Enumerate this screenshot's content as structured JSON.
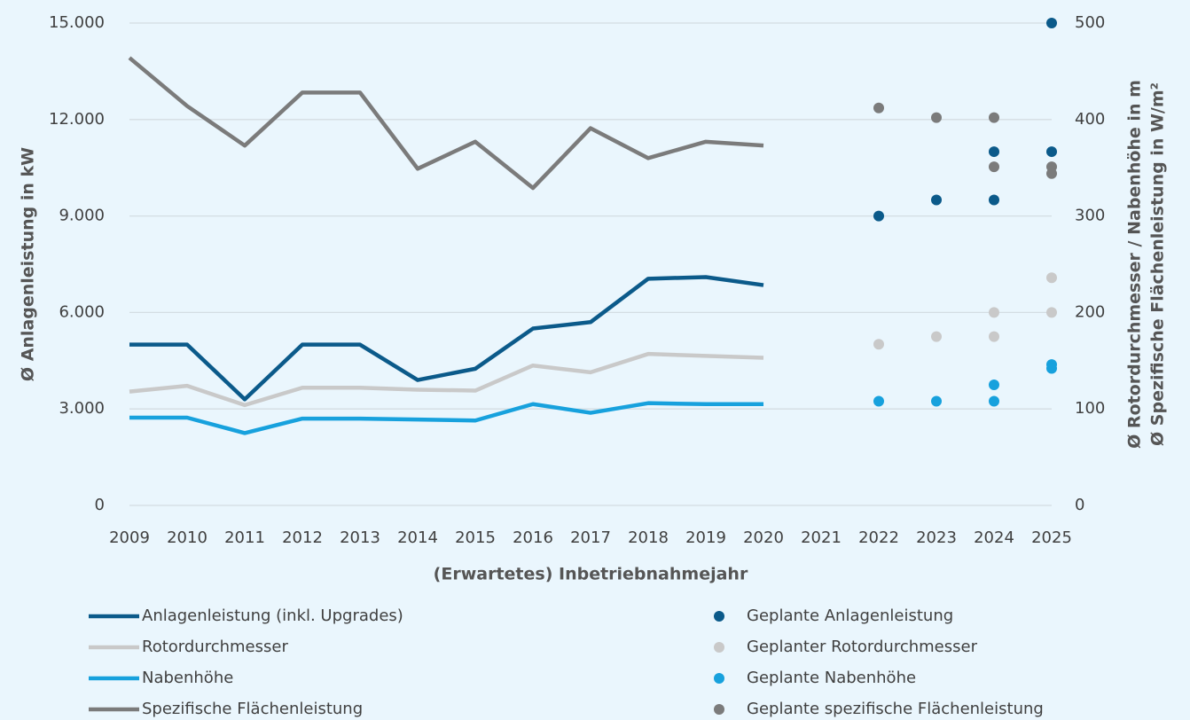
{
  "chart_data": {
    "type": "line",
    "x_label": "(Erwartetes) Inbetriebnahmejahr",
    "y_label": "Ø Anlagenleistung in kW",
    "y2_label": [
      "Ø Rotordurchmesser / Nabenhöhe in m",
      "Ø Spezifische Flächenleistung in W/m²"
    ],
    "categories": [
      "2009",
      "2010",
      "2011",
      "2012",
      "2013",
      "2014",
      "2015",
      "2016",
      "2017",
      "2018",
      "2019",
      "2020",
      "2021",
      "2022",
      "2023",
      "2024",
      "2025"
    ],
    "ylim": [
      0,
      15000
    ],
    "yticks": [
      0,
      {
        "value": 3000,
        "label": "3.000"
      },
      {
        "value": 6000,
        "label": "6.000"
      },
      {
        "value": 9000,
        "label": "9.000"
      },
      {
        "value": 12000,
        "label": "12.000"
      },
      {
        "value": 15000,
        "label": "15.000"
      }
    ],
    "y2lim": [
      0,
      500
    ],
    "y2ticks": [
      0,
      100,
      200,
      300,
      400,
      500
    ],
    "grid": true,
    "legend": "bottom",
    "series": [
      {
        "name": "Anlagenleistung (inkl. Upgrades)",
        "type": "line",
        "color": "#0b5a8a",
        "values": [
          5000,
          5000,
          3300,
          5000,
          5000,
          3900,
          4250,
          5500,
          5700,
          7050,
          7100,
          6850,
          null,
          null,
          null,
          null,
          null
        ]
      },
      {
        "name": "Rotordurchmesser",
        "type": "line",
        "axis": "y2",
        "color": "#c9c9c9",
        "values": [
          118,
          124,
          104,
          122,
          122,
          120,
          119,
          145,
          138,
          157,
          155,
          153,
          null,
          null,
          null,
          null,
          null
        ]
      },
      {
        "name": "Nabenhöhe",
        "type": "line",
        "axis": "y2",
        "color": "#17a1dd",
        "values": [
          91,
          91,
          75,
          90,
          90,
          89,
          88,
          105,
          96,
          106,
          105,
          105,
          null,
          null,
          null,
          null,
          null
        ]
      },
      {
        "name": "Spezifische Flächenleistung",
        "type": "line",
        "axis": "y2",
        "color": "#7b7b7b",
        "values": [
          464,
          414,
          373,
          428,
          428,
          349,
          377,
          329,
          391,
          360,
          377,
          373,
          null,
          null,
          null,
          null,
          null
        ]
      },
      {
        "name": "Geplante Anlagenleistung",
        "type": "scatter",
        "color": "#0b5a8a",
        "x": [
          "2022",
          "2023",
          "2024",
          "2024",
          "2025",
          "2025"
        ],
        "values": [
          9000,
          9500,
          9500,
          11000,
          11000,
          15000
        ]
      },
      {
        "name": "Geplanter Rotordurchmesser",
        "type": "scatter",
        "axis": "y2",
        "color": "#c9c9c9",
        "x": [
          "2022",
          "2023",
          "2024",
          "2024",
          "2025",
          "2025"
        ],
        "values": [
          167,
          175,
          175,
          200,
          200,
          236
        ]
      },
      {
        "name": "Geplante Nabenhöhe",
        "type": "scatter",
        "axis": "y2",
        "color": "#17a1dd",
        "x": [
          "2022",
          "2023",
          "2024",
          "2024",
          "2025",
          "2025"
        ],
        "values": [
          108,
          108,
          108,
          125,
          146,
          142
        ]
      },
      {
        "name": "Geplante spezifische Flächenleistung",
        "type": "scatter",
        "axis": "y2",
        "color": "#7b7b7b",
        "x": [
          "2022",
          "2023",
          "2024",
          "2024",
          "2025",
          "2025"
        ],
        "values": [
          412,
          402,
          402,
          351,
          351,
          344
        ]
      }
    ]
  }
}
